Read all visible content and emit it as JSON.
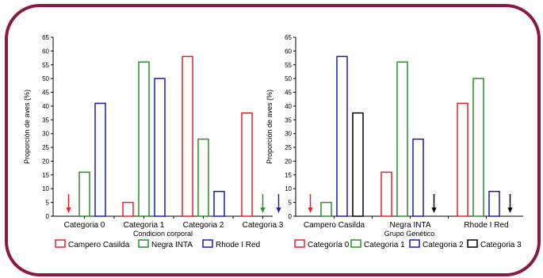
{
  "chart_data": [
    {
      "type": "bar",
      "ylabel": "Proporción de aves (%)",
      "xlabel": "Condicion corporal",
      "ylim": [
        0,
        65
      ],
      "yticks": [
        0,
        5,
        10,
        15,
        20,
        25,
        30,
        35,
        40,
        45,
        50,
        55,
        60,
        65
      ],
      "categories": [
        "Categoria 0",
        "Categoria 1",
        "Categoria 2",
        "Categoria 3"
      ],
      "series": [
        {
          "name": "Campero Casilda",
          "color": "#e8202a",
          "values": [
            0,
            5,
            58,
            37.5
          ]
        },
        {
          "name": "Negra INTA",
          "color": "#2a8f2a",
          "values": [
            16,
            56,
            28,
            0
          ]
        },
        {
          "name": "Rhode I Red",
          "color": "#1a1ab8",
          "values": [
            41,
            50,
            9,
            0
          ]
        }
      ],
      "arrows": [
        {
          "category": 0,
          "series": 0,
          "color": "#e8202a"
        },
        {
          "category": 3,
          "series": 1,
          "color": "#2a8f2a"
        },
        {
          "category": 3,
          "series": 2,
          "color": "#1a1ab8"
        }
      ],
      "legend": "bottom"
    },
    {
      "type": "bar",
      "ylabel": "Proporción de aves (%)",
      "xlabel": "Grupo Genético",
      "ylim": [
        0,
        65
      ],
      "yticks": [
        0,
        5,
        10,
        15,
        20,
        25,
        30,
        35,
        40,
        45,
        50,
        55,
        60,
        65
      ],
      "categories": [
        "Campero Casilda",
        "Negra INTA",
        "Rhode I Red"
      ],
      "series": [
        {
          "name": "Categoría 0",
          "color": "#e8202a",
          "values": [
            0,
            16,
            41
          ]
        },
        {
          "name": "Categoria 1",
          "color": "#2a8f2a",
          "values": [
            5,
            56,
            50
          ]
        },
        {
          "name": "Categoria 2",
          "color": "#1a1ab8",
          "values": [
            58,
            28,
            9
          ]
        },
        {
          "name": "Categoria 3",
          "color": "#000000",
          "values": [
            37.5,
            0,
            0
          ]
        }
      ],
      "arrows": [
        {
          "category": 0,
          "series": 0,
          "color": "#e8202a"
        },
        {
          "category": 1,
          "series": 3,
          "color": "#000000"
        },
        {
          "category": 2,
          "series": 3,
          "color": "#000000"
        }
      ],
      "legend": "bottom"
    }
  ]
}
